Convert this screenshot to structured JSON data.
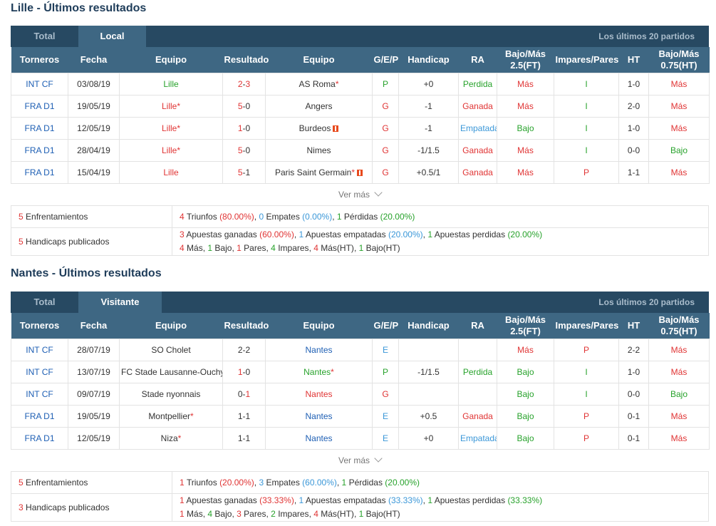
{
  "lille": {
    "title": "Lille - Últimos resultados",
    "tabs": [
      "Total",
      "Local"
    ],
    "right_label": "Los últimos 20 partidos",
    "rows": [
      {
        "torneo": "INT CF",
        "fecha": "03/08/19",
        "equipo": "Lille",
        "equipo_star": false,
        "equipo_color": "green",
        "res_h": "2",
        "res_a": "3",
        "res_hc": "red",
        "res_ac": "red",
        "rival": "AS Roma",
        "rival_star": true,
        "rival_flag": false,
        "rival_color": "dark",
        "gep": "P",
        "gep_color": "green",
        "handicap": "+0",
        "ra": "Perdida",
        "ra_color": "green",
        "bm": "Más",
        "bm_color": "red",
        "ip": "I",
        "ip_color": "green",
        "ht": "1-0",
        "bm75": "Más",
        "bm75_color": "red"
      },
      {
        "torneo": "FRA D1",
        "fecha": "19/05/19",
        "equipo": "Lille",
        "equipo_star": true,
        "equipo_color": "red",
        "res_h": "5",
        "res_a": "0",
        "res_hc": "red",
        "res_ac": "dark",
        "rival": "Angers",
        "rival_star": false,
        "rival_flag": false,
        "rival_color": "dark",
        "gep": "G",
        "gep_color": "red",
        "handicap": "-1",
        "ra": "Ganada",
        "ra_color": "red",
        "bm": "Más",
        "bm_color": "red",
        "ip": "I",
        "ip_color": "green",
        "ht": "2-0",
        "bm75": "Más",
        "bm75_color": "red"
      },
      {
        "torneo": "FRA D1",
        "fecha": "12/05/19",
        "equipo": "Lille",
        "equipo_star": true,
        "equipo_color": "red",
        "res_h": "1",
        "res_a": "0",
        "res_hc": "red",
        "res_ac": "dark",
        "rival": "Burdeos",
        "rival_star": false,
        "rival_flag": true,
        "rival_color": "dark",
        "gep": "G",
        "gep_color": "red",
        "handicap": "-1",
        "ra": "Empatada",
        "ra_color": "lblue",
        "bm": "Bajo",
        "bm_color": "green",
        "ip": "I",
        "ip_color": "green",
        "ht": "1-0",
        "bm75": "Más",
        "bm75_color": "red"
      },
      {
        "torneo": "FRA D1",
        "fecha": "28/04/19",
        "equipo": "Lille",
        "equipo_star": true,
        "equipo_color": "red",
        "res_h": "5",
        "res_a": "0",
        "res_hc": "red",
        "res_ac": "dark",
        "rival": "Nimes",
        "rival_star": false,
        "rival_flag": false,
        "rival_color": "dark",
        "gep": "G",
        "gep_color": "red",
        "handicap": "-1/1.5",
        "ra": "Ganada",
        "ra_color": "red",
        "bm": "Más",
        "bm_color": "red",
        "ip": "I",
        "ip_color": "green",
        "ht": "0-0",
        "bm75": "Bajo",
        "bm75_color": "green"
      },
      {
        "torneo": "FRA D1",
        "fecha": "15/04/19",
        "equipo": "Lille",
        "equipo_star": false,
        "equipo_color": "red",
        "res_h": "5",
        "res_a": "1",
        "res_hc": "red",
        "res_ac": "dark",
        "rival": "Paris Saint Germain",
        "rival_star": true,
        "rival_flag": true,
        "rival_color": "dark",
        "gep": "G",
        "gep_color": "red",
        "handicap": "+0.5/1",
        "ra": "Ganada",
        "ra_color": "red",
        "bm": "Más",
        "bm_color": "red",
        "ip": "P",
        "ip_color": "red",
        "ht": "1-1",
        "bm75": "Más",
        "bm75_color": "red"
      }
    ],
    "ver_mas": "Ver más",
    "summary": {
      "enf_count": "5",
      "enf_label": "Enfrentamientos",
      "enf_w": "4",
      "enf_w_label": "Triunfos",
      "enf_w_pct": "(80.00%)",
      "enf_d": "0",
      "enf_d_label": "Empates",
      "enf_d_pct": "(0.00%)",
      "enf_l": "1",
      "enf_l_label": "Pérdidas",
      "enf_l_pct": "(20.00%)",
      "hc_count": "5",
      "hc_label": "Handicaps publicados",
      "hc_w": "3",
      "hc_w_label": "Apuestas ganadas",
      "hc_w_pct": "(60.00%)",
      "hc_d": "1",
      "hc_d_label": "Apuestas empatadas",
      "hc_d_pct": "(20.00%)",
      "hc_l": "1",
      "hc_l_label": "Apuestas perdidas",
      "hc_l_pct": "(20.00%)",
      "ou": [
        [
          "4",
          "Más"
        ],
        [
          "1",
          "Bajo"
        ],
        [
          "1",
          "Pares"
        ],
        [
          "4",
          "Impares"
        ],
        [
          "4",
          "Más(HT)"
        ],
        [
          "1",
          "Bajo(HT)"
        ]
      ]
    }
  },
  "nantes": {
    "title": "Nantes - Últimos resultados",
    "tabs": [
      "Total",
      "Visitante"
    ],
    "right_label": "Los últimos 20 partidos",
    "rows": [
      {
        "torneo": "INT CF",
        "fecha": "28/07/19",
        "equipo": "SO Cholet",
        "equipo_star": false,
        "equipo_color": "dark",
        "res_h": "2",
        "res_a": "2",
        "res_hc": "dark",
        "res_ac": "dark",
        "rival": "Nantes",
        "rival_star": false,
        "rival_flag": false,
        "rival_color": "blue",
        "gep": "E",
        "gep_color": "lblue",
        "handicap": "",
        "ra": "",
        "ra_color": "dark",
        "bm": "Más",
        "bm_color": "red",
        "ip": "P",
        "ip_color": "red",
        "ht": "2-2",
        "bm75": "Más",
        "bm75_color": "red"
      },
      {
        "torneo": "INT CF",
        "fecha": "13/07/19",
        "equipo": "FC Stade Lausanne-Ouchy",
        "equipo_star": false,
        "equipo_color": "dark",
        "res_h": "1",
        "res_a": "0",
        "res_hc": "red",
        "res_ac": "dark",
        "rival": "Nantes",
        "rival_star": true,
        "rival_flag": false,
        "rival_color": "green",
        "gep": "P",
        "gep_color": "green",
        "handicap": "-1/1.5",
        "ra": "Perdida",
        "ra_color": "green",
        "bm": "Bajo",
        "bm_color": "green",
        "ip": "I",
        "ip_color": "green",
        "ht": "1-0",
        "bm75": "Más",
        "bm75_color": "red"
      },
      {
        "torneo": "INT CF",
        "fecha": "09/07/19",
        "equipo": "Stade nyonnais",
        "equipo_star": false,
        "equipo_color": "dark",
        "res_h": "0",
        "res_a": "1",
        "res_hc": "dark",
        "res_ac": "red",
        "rival": "Nantes",
        "rival_star": false,
        "rival_flag": false,
        "rival_color": "red",
        "gep": "G",
        "gep_color": "red",
        "handicap": "",
        "ra": "",
        "ra_color": "dark",
        "bm": "Bajo",
        "bm_color": "green",
        "ip": "I",
        "ip_color": "green",
        "ht": "0-0",
        "bm75": "Bajo",
        "bm75_color": "green"
      },
      {
        "torneo": "FRA D1",
        "fecha": "19/05/19",
        "equipo": "Montpellier",
        "equipo_star": true,
        "equipo_color": "dark",
        "res_h": "1",
        "res_a": "1",
        "res_hc": "dark",
        "res_ac": "dark",
        "rival": "Nantes",
        "rival_star": false,
        "rival_flag": false,
        "rival_color": "blue",
        "gep": "E",
        "gep_color": "lblue",
        "handicap": "+0.5",
        "ra": "Ganada",
        "ra_color": "red",
        "bm": "Bajo",
        "bm_color": "green",
        "ip": "P",
        "ip_color": "red",
        "ht": "0-1",
        "bm75": "Más",
        "bm75_color": "red"
      },
      {
        "torneo": "FRA D1",
        "fecha": "12/05/19",
        "equipo": "Niza",
        "equipo_star": true,
        "equipo_color": "dark",
        "res_h": "1",
        "res_a": "1",
        "res_hc": "dark",
        "res_ac": "dark",
        "rival": "Nantes",
        "rival_star": false,
        "rival_flag": false,
        "rival_color": "blue",
        "gep": "E",
        "gep_color": "lblue",
        "handicap": "+0",
        "ra": "Empatada",
        "ra_color": "lblue",
        "bm": "Bajo",
        "bm_color": "green",
        "ip": "P",
        "ip_color": "red",
        "ht": "0-1",
        "bm75": "Más",
        "bm75_color": "red"
      }
    ],
    "ver_mas": "Ver más",
    "summary": {
      "enf_count": "5",
      "enf_label": "Enfrentamientos",
      "enf_w": "1",
      "enf_w_label": "Triunfos",
      "enf_w_pct": "(20.00%)",
      "enf_d": "3",
      "enf_d_label": "Empates",
      "enf_d_pct": "(60.00%)",
      "enf_l": "1",
      "enf_l_label": "Pérdidas",
      "enf_l_pct": "(20.00%)",
      "hc_count": "3",
      "hc_label": "Handicaps publicados",
      "hc_w": "1",
      "hc_w_label": "Apuestas ganadas",
      "hc_w_pct": "(33.33%)",
      "hc_d": "1",
      "hc_d_label": "Apuestas empatadas",
      "hc_d_pct": "(33.33%)",
      "hc_l": "1",
      "hc_l_label": "Apuestas perdidas",
      "hc_l_pct": "(33.33%)",
      "ou": [
        [
          "1",
          "Más"
        ],
        [
          "4",
          "Bajo"
        ],
        [
          "3",
          "Pares"
        ],
        [
          "2",
          "Impares"
        ],
        [
          "4",
          "Más(HT)"
        ],
        [
          "1",
          "Bajo(HT)"
        ]
      ]
    }
  },
  "headers": [
    "Torneros",
    "Fecha",
    "Equipo",
    "Resultado",
    "Equipo",
    "G/E/P",
    "Handicap",
    "RA",
    "Bajo/Más 2.5(FT)",
    "Impares/Pares",
    "HT",
    "Bajo/Más 0.75(HT)"
  ],
  "colors": {
    "header_bg": "#3e6783",
    "tabbar_bg": "#274962",
    "red": "#e03434",
    "green": "#27a22b",
    "blue": "#1e5fb4",
    "light_blue": "#3a97d8"
  }
}
